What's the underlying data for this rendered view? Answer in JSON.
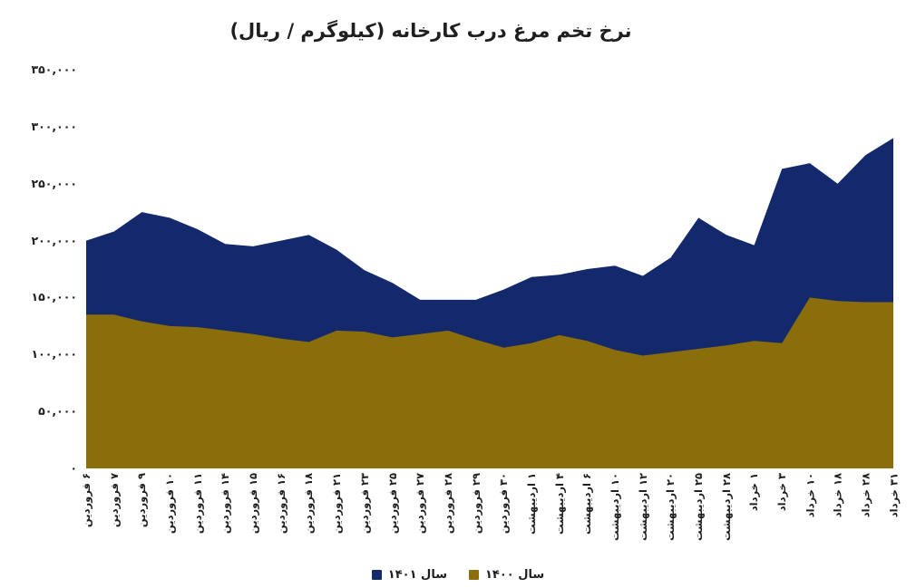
{
  "chart_data": {
    "type": "area",
    "title": "نرخ تخم مرغ درب کارخانه (کیلوگرم / ریال)",
    "categories": [
      "۶ فروردین",
      "۷ فروردین",
      "۹ فروردین",
      "۱۰ فروردین",
      "۱۱ فروردین",
      "۱۴ فروردین",
      "۱۵ فروردین",
      "۱۶ فروردین",
      "۱۸ فروردین",
      "۲۱ فروردین",
      "۲۳ فروردین",
      "۲۵ فروردین",
      "۲۷ فروردین",
      "۲۸ فروردین",
      "۲۹ فروردین",
      "۳۰ فروردین",
      "۱ اردیبهشت",
      "۴ اردیبهشت",
      "۶ اردیبهشت",
      "۱۰ اردیبهشت",
      "۱۲ اردیبهشت",
      "۲۰ اردیبهشت",
      "۲۵ اردیبهشت",
      "۲۸ اردیبهشت",
      "۱ خرداد",
      "۳ خرداد",
      "۱۰ خرداد",
      "۱۸ خرداد",
      "۲۸ خرداد",
      "۳۱ خرداد"
    ],
    "series": [
      {
        "name": "سال ۱۴۰۱",
        "color": "#13296b",
        "values": [
          200000,
          208000,
          225000,
          220000,
          210000,
          197000,
          195000,
          200000,
          205000,
          192000,
          174000,
          163000,
          148000,
          148000,
          148000,
          157000,
          168000,
          170000,
          175000,
          178000,
          169000,
          185000,
          220000,
          205000,
          196000,
          263000,
          268000,
          250000,
          275000,
          290000
        ]
      },
      {
        "name": "سال ۱۴۰۰",
        "color": "#8a6e0c",
        "values": [
          135000,
          135000,
          129000,
          125000,
          124000,
          121000,
          118000,
          114000,
          111000,
          121000,
          120000,
          115000,
          118000,
          121000,
          113000,
          106000,
          110000,
          117000,
          112000,
          104000,
          99000,
          102000,
          105000,
          108000,
          112000,
          110000,
          150000,
          147000,
          146000,
          146000
        ]
      }
    ],
    "xlabel": "",
    "ylabel": "",
    "ylim": [
      0,
      350000
    ],
    "y_ticks": [
      {
        "value": 350000,
        "label": "۳۵۰,۰۰۰"
      },
      {
        "value": 300000,
        "label": "۳۰۰,۰۰۰"
      },
      {
        "value": 250000,
        "label": "۲۵۰,۰۰۰"
      },
      {
        "value": 200000,
        "label": "۲۰۰,۰۰۰"
      },
      {
        "value": 150000,
        "label": "۱۵۰,۰۰۰"
      },
      {
        "value": 100000,
        "label": "۱۰۰,۰۰۰"
      },
      {
        "value": 50000,
        "label": "۵۰,۰۰۰"
      },
      {
        "value": 0,
        "label": "۰"
      }
    ],
    "grid": false,
    "legend_position": "bottom",
    "x_tick_rotation_deg": 90,
    "background_color": "#ffffff",
    "text_color": "#1f1f1f"
  }
}
